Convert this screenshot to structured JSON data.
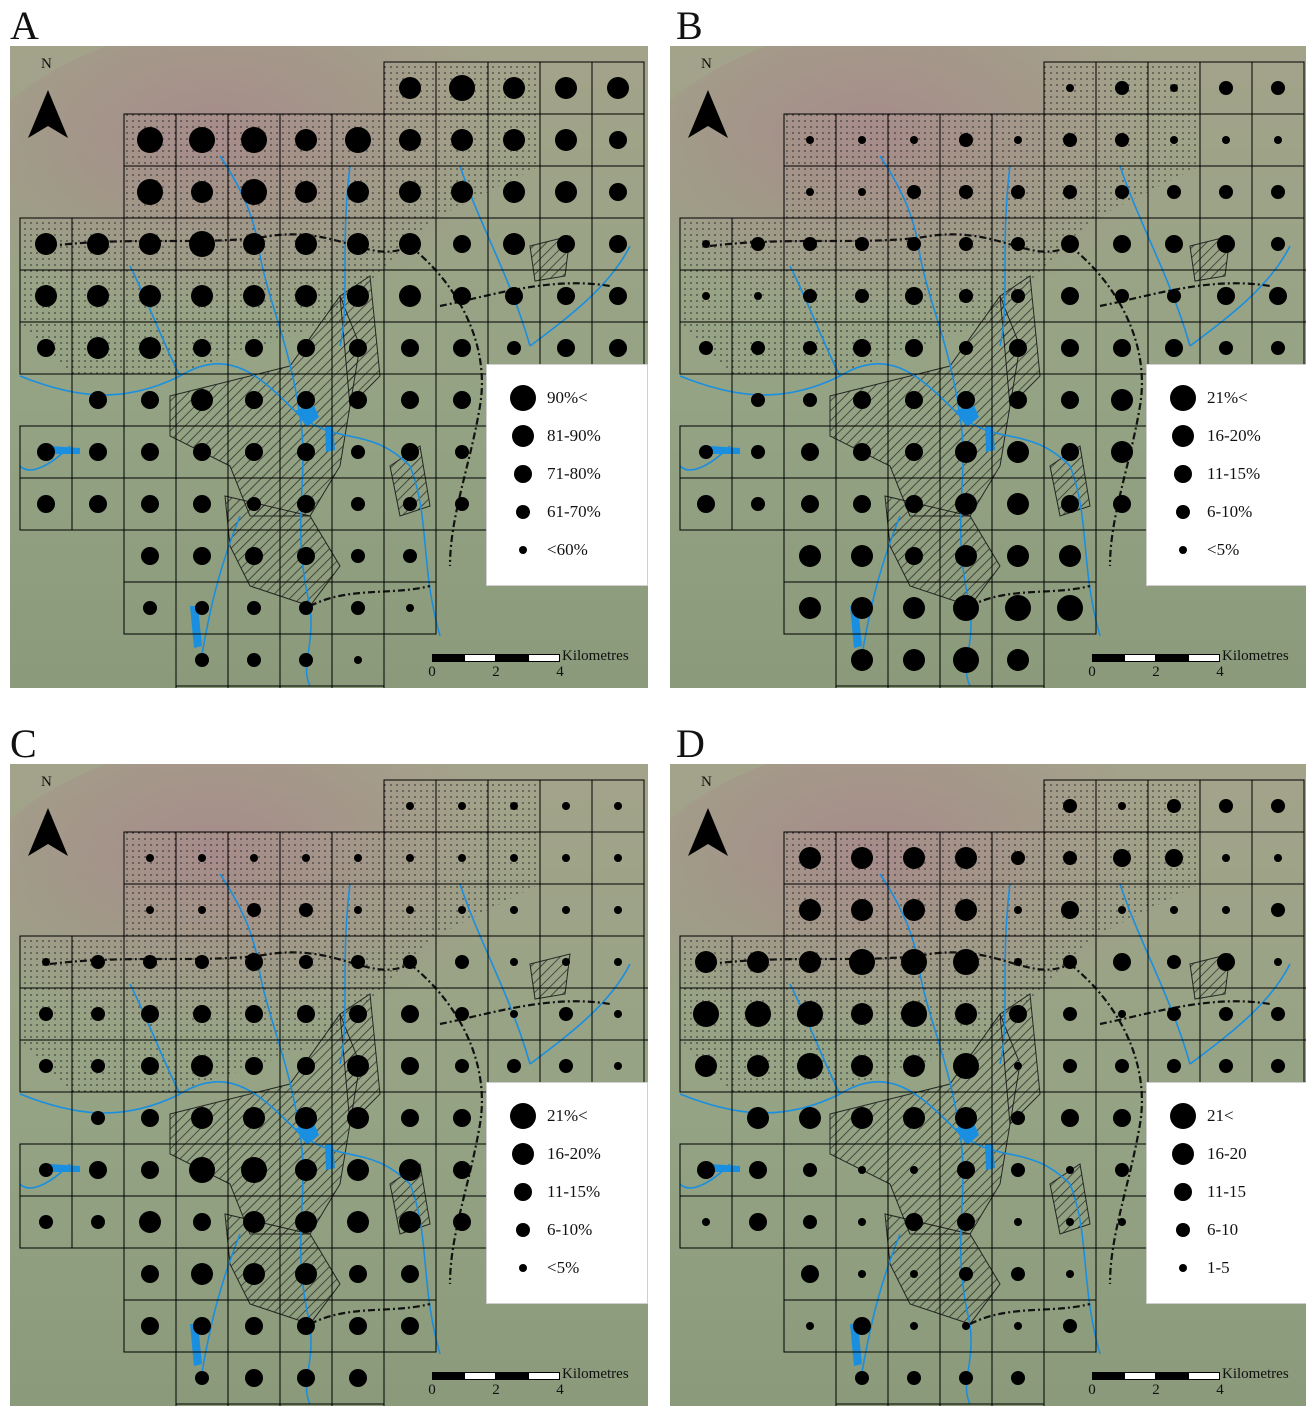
{
  "panels": [
    {
      "letter": "A",
      "legend": [
        "90%<",
        "81-90%",
        "71-80%",
        "61-70%",
        "<60%"
      ]
    },
    {
      "letter": "B",
      "legend": [
        "21%<",
        "16-20%",
        "11-15%",
        "6-10%",
        "<5%"
      ]
    },
    {
      "letter": "C",
      "legend": [
        "21%<",
        "16-20%",
        "11-15%",
        "6-10%",
        "<5%"
      ]
    },
    {
      "letter": "D",
      "legend": [
        "21<",
        "16-20",
        "11-15",
        "6-10",
        "1-5"
      ]
    }
  ],
  "north_label": "N",
  "scale": {
    "unit": "Kilometres",
    "ticks": [
      "0",
      "2",
      "4"
    ]
  },
  "colors": {
    "terrain_low": "#8f9f7c",
    "terrain_high": "#a8878a",
    "water": "#1a8fe0",
    "grid": "#000000",
    "symbol": "#000000"
  }
}
